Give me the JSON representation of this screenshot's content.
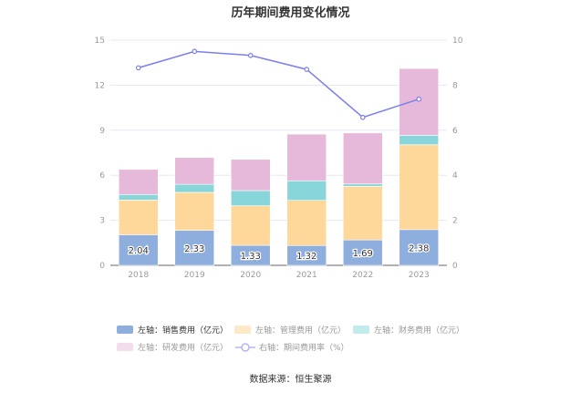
{
  "chart_data": {
    "type": "bar",
    "title": "历年期间费用变化情况",
    "categories": [
      "2018",
      "2019",
      "2020",
      "2021",
      "2022",
      "2023"
    ],
    "left_axis": {
      "ylim": [
        0,
        15
      ],
      "ticks": [
        0,
        3,
        6,
        9,
        12,
        15
      ]
    },
    "right_axis": {
      "ylim": [
        0,
        10
      ],
      "ticks": [
        0,
        2,
        4,
        6,
        8,
        10
      ]
    },
    "grid": true,
    "series": [
      {
        "name": "左轴：销售费用（亿元）",
        "type": "bar",
        "axis": "left",
        "color": "#8eaedd",
        "values": [
          2.04,
          2.33,
          1.33,
          1.32,
          1.69,
          2.38
        ],
        "labels": [
          "2.04",
          "2.33",
          "1.33",
          "1.32",
          "1.69",
          "2.38"
        ]
      },
      {
        "name": "左轴：管理费用（亿元）",
        "type": "bar",
        "axis": "left",
        "color": "#fed89a",
        "values": [
          2.31,
          2.53,
          2.64,
          3.01,
          3.57,
          5.65
        ]
      },
      {
        "name": "左轴：财务费用（亿元）",
        "type": "bar",
        "axis": "left",
        "color": "#88d6d9",
        "values": [
          0.37,
          0.54,
          1.01,
          1.3,
          0.16,
          0.63
        ]
      },
      {
        "name": "左轴：研发费用（亿元）",
        "type": "bar",
        "axis": "left",
        "color": "#e6b8d9",
        "values": [
          1.67,
          1.78,
          2.08,
          3.11,
          3.4,
          4.45
        ]
      },
      {
        "name": "右轴：期间费用率（%）",
        "type": "line",
        "axis": "right",
        "color": "#7b7ef0",
        "values": [
          8.77,
          9.5,
          9.32,
          8.7,
          6.57,
          7.38
        ]
      }
    ],
    "legend_position": "bottom",
    "source": "数据来源：恒生聚源"
  }
}
